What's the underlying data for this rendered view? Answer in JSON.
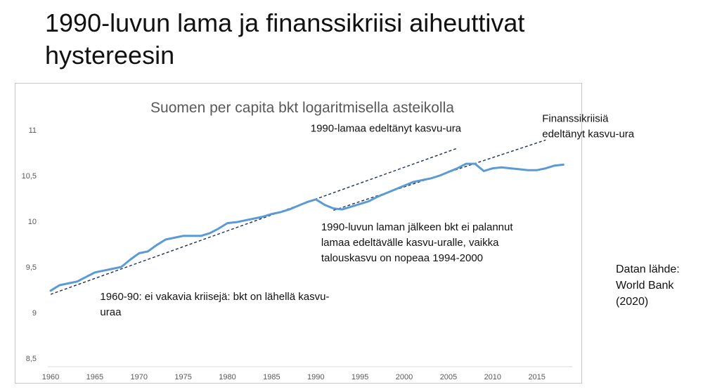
{
  "slide": {
    "title_line1": "1990-luvun lama ja finanssikriisi aiheuttivat",
    "title_line2": "hystereesin"
  },
  "source_note": {
    "line1": "Datan lähde:",
    "line2": "World Bank",
    "line3": "(2020)"
  },
  "chart_data": {
    "type": "line",
    "title": "Suomen per capita bkt logaritmisella asteikolla",
    "xlabel": "",
    "ylabel": "",
    "xlim": [
      1960,
      2019
    ],
    "ylim": [
      8.5,
      11
    ],
    "x_ticks": [
      1960,
      1965,
      1970,
      1975,
      1980,
      1985,
      1990,
      1995,
      2000,
      2005,
      2010,
      2015
    ],
    "y_ticks": [
      8.5,
      9,
      9.5,
      10,
      10.5,
      11
    ],
    "y_tick_labels": [
      "8,5",
      "9",
      "9,5",
      "10",
      "10,5",
      "11"
    ],
    "grid": false,
    "legend": "none",
    "series_color": "#5b9bd5",
    "trend_color": "#1f2d5a",
    "series": [
      {
        "x": [
          1960,
          1961,
          1962,
          1963,
          1964,
          1965,
          1966,
          1967,
          1968,
          1969,
          1970,
          1971,
          1972,
          1973,
          1974,
          1975,
          1976,
          1977,
          1978,
          1979,
          1980,
          1981,
          1982,
          1983,
          1984,
          1985,
          1986,
          1987,
          1988,
          1989,
          1990,
          1991,
          1992,
          1993,
          1994,
          1995,
          1996,
          1997,
          1998,
          1999,
          2000,
          2001,
          2002,
          2003,
          2004,
          2005,
          2006,
          2007,
          2008,
          2009,
          2010,
          2011,
          2012,
          2013,
          2014,
          2015,
          2016,
          2017,
          2018
        ],
        "y": [
          9.24,
          9.3,
          9.32,
          9.34,
          9.39,
          9.44,
          9.46,
          9.48,
          9.5,
          9.58,
          9.65,
          9.67,
          9.74,
          9.8,
          9.82,
          9.84,
          9.84,
          9.84,
          9.87,
          9.92,
          9.98,
          9.99,
          10.01,
          10.03,
          10.05,
          10.08,
          10.1,
          10.13,
          10.17,
          10.21,
          10.24,
          10.18,
          10.14,
          10.13,
          10.16,
          10.19,
          10.22,
          10.27,
          10.31,
          10.35,
          10.39,
          10.43,
          10.45,
          10.47,
          10.5,
          10.54,
          10.58,
          10.63,
          10.63,
          10.55,
          10.58,
          10.59,
          10.58,
          10.57,
          10.56,
          10.56,
          10.58,
          10.61,
          10.62
        ]
      }
    ],
    "trend_lines": [
      {
        "label": "1960-90 / 1990-lamaa edeltänyt kasvu-ura",
        "x": [
          1960,
          2006
        ],
        "y": [
          9.2,
          10.8
        ]
      },
      {
        "label": "Finanssikriisiä edeltänyt kasvu-ura",
        "x": [
          1992,
          2016
        ],
        "y": [
          10.12,
          10.89
        ]
      }
    ],
    "annotations": [
      {
        "lines": [
          "1990-lamaa edeltänyt kasvu-ura"
        ],
        "anchor": [
          1989.4,
          10.98
        ]
      },
      {
        "lines": [
          "Finanssikriisiä",
          "edeltänyt kasvu-ura"
        ],
        "anchor": [
          2015.6,
          11.09
        ]
      },
      {
        "lines": [
          "1990-luvun laman jälkeen bkt ei palannut",
          "lamaa edeltävälle kasvu-uralle, vaikka",
          "talouskasvu on nopeaa 1994-2000"
        ],
        "anchor": [
          1990.6,
          9.9
        ]
      },
      {
        "lines": [
          "1960-90: ei vakavia kriisejä: bkt on lähellä kasvu-",
          "uraa"
        ],
        "anchor": [
          1965.6,
          9.14
        ]
      }
    ]
  }
}
